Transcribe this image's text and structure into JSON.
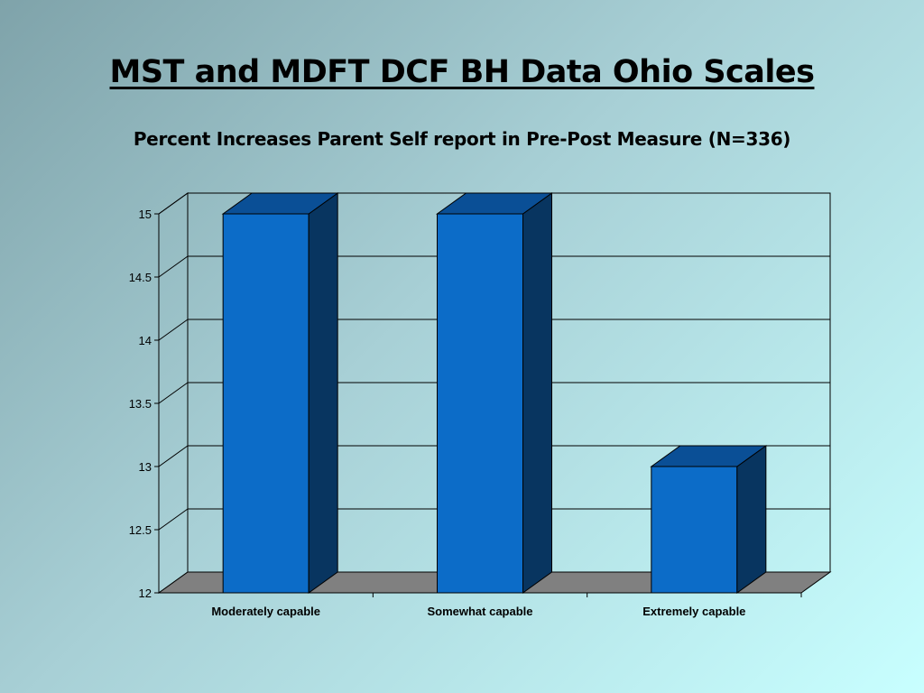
{
  "page": {
    "title": "MST and MDFT DCF BH Data Ohio Scales",
    "subtitle": "Percent Increases Parent Self report in Pre-Post Measure (N=336)"
  },
  "chart_data": {
    "type": "bar",
    "title": "Percent Increases Parent Self report in Pre-Post Measure (N=336)",
    "categories": [
      "Moderately capable",
      "Somewhat capable",
      "Extremely capable"
    ],
    "values": [
      15,
      15,
      13
    ],
    "ylim": [
      12,
      15
    ],
    "yticks": [
      "12",
      "12.5",
      "13",
      "13.5",
      "14",
      "14.5",
      "15"
    ],
    "xlabel": "",
    "ylabel": "",
    "grid": true,
    "legend": "none",
    "style": "3d",
    "colors": {
      "bar_front": "#0c6cc8",
      "bar_top": "#0a4f96",
      "bar_side": "#083560",
      "floor": "#808080"
    }
  }
}
